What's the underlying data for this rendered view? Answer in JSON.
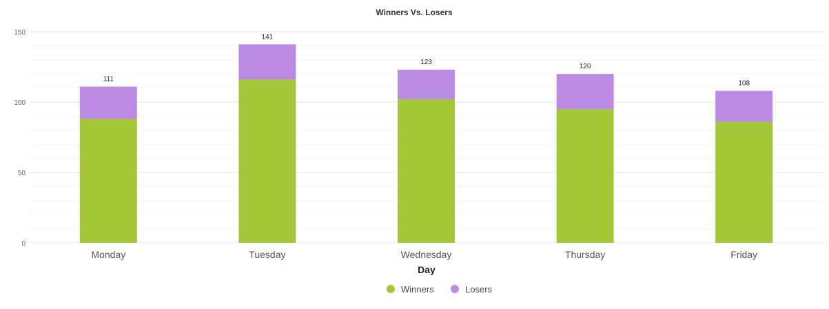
{
  "chart_data": {
    "type": "bar",
    "stacked": true,
    "title": "Winners Vs. Losers",
    "xlabel": "Day",
    "ylabel": "",
    "categories": [
      "Monday",
      "Tuesday",
      "Wednesday",
      "Thursday",
      "Friday"
    ],
    "series": [
      {
        "name": "Winners",
        "color": "#a4c639",
        "values": [
          88,
          116,
          102,
          95,
          86
        ]
      },
      {
        "name": "Losers",
        "color": "#bb8be3",
        "values": [
          23,
          25,
          21,
          25,
          22
        ]
      }
    ],
    "totals": [
      111,
      141,
      123,
      120,
      108
    ],
    "ylim": [
      0,
      150
    ],
    "yticks": [
      0,
      50,
      100,
      150
    ],
    "grid": true,
    "legend": "bottom-center"
  }
}
